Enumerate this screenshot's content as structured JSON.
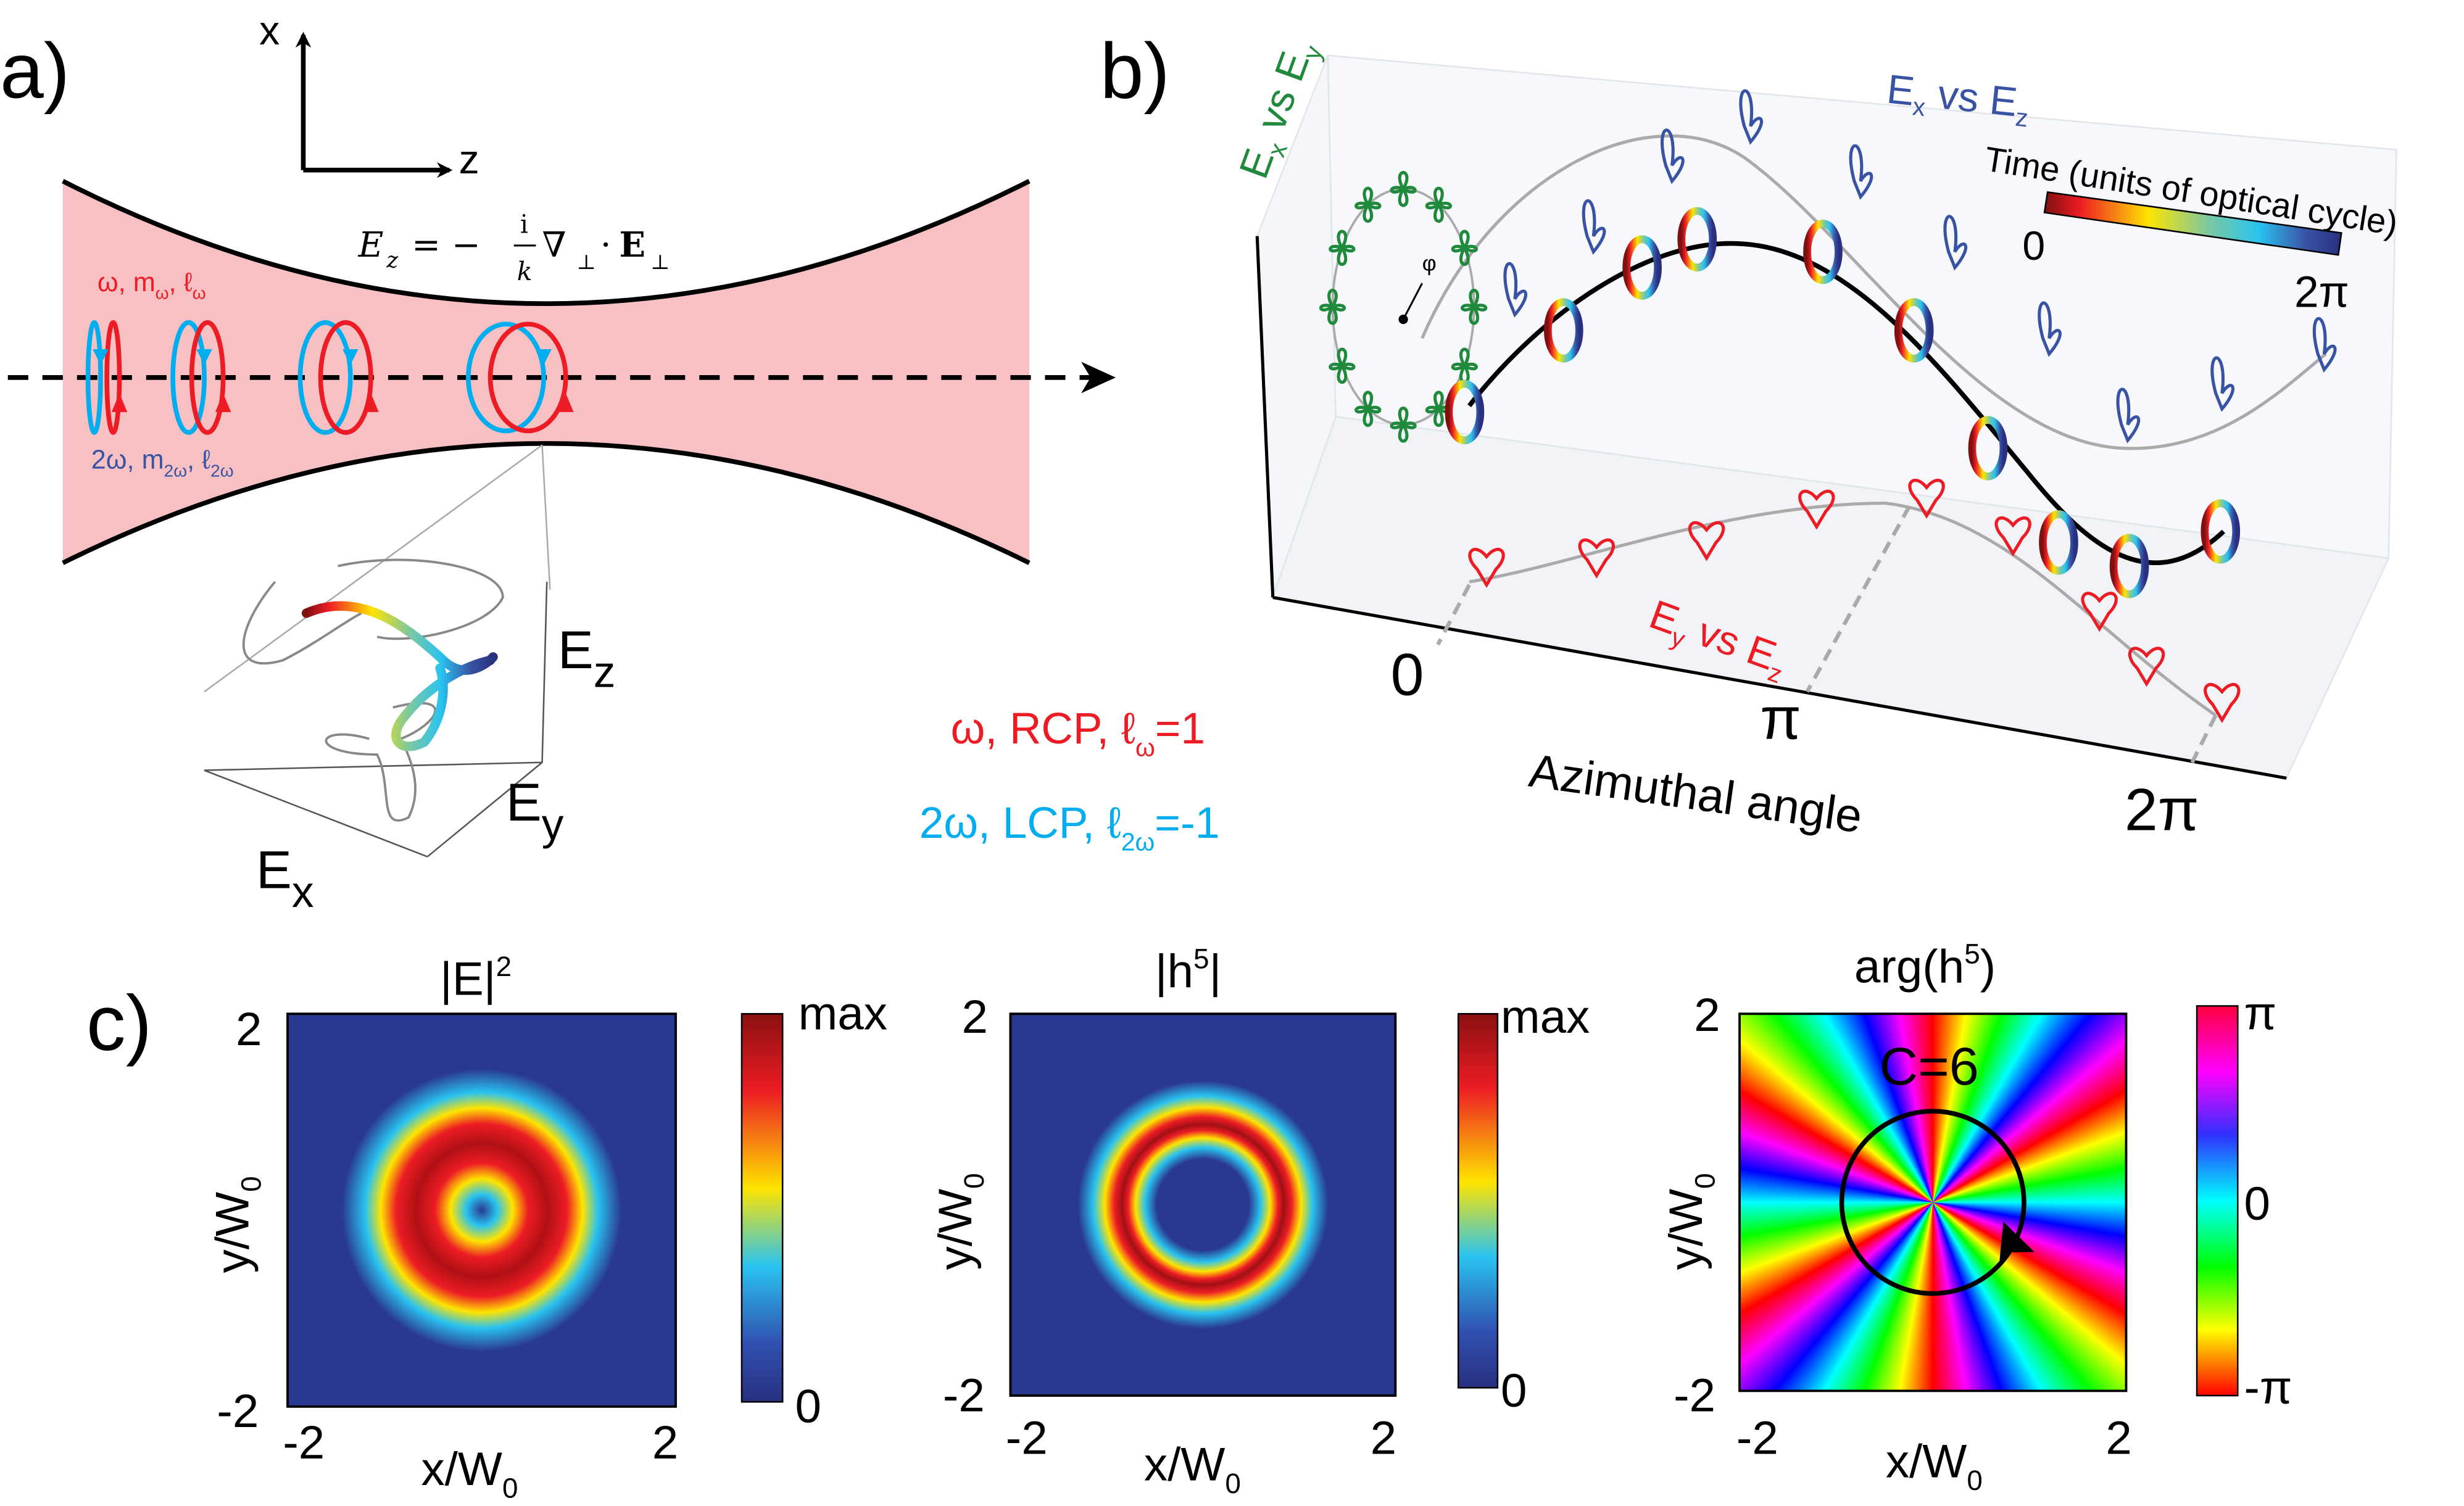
{
  "colors": {
    "red": "#ed1c24",
    "cyan": "#00aeef",
    "blue": "#3953a4",
    "green": "#1f8a3c",
    "beam": "#f7c1c3"
  },
  "panel_a": {
    "label": "a)",
    "axis_x": "x",
    "axis_z": "z",
    "equation": {
      "E": "E",
      "z": "z",
      "eq": "= −",
      "num": "i",
      "den": "k",
      "nabla": "∇",
      "perp": "⊥",
      "dot": "·",
      "bold_E": "E",
      "perp2": "⊥"
    },
    "omega_label": {
      "main": "ω, m",
      "sub1": "ω",
      "comma": ", ℓ",
      "sub2": "ω"
    },
    "two_omega_label": {
      "main": "2ω, m",
      "sub1": "2ω",
      "comma": ", ℓ",
      "sub2": "2ω"
    },
    "inset": {
      "ez": "E",
      "ez_sub": "z",
      "ey": "E",
      "ey_sub": "y",
      "ex": "E",
      "ex_sub": "x"
    },
    "legend": {
      "red": {
        "main": "ω, RCP, ℓ",
        "sub": "ω",
        "tail": "=1"
      },
      "cyan": {
        "main": "2ω, LCP, ℓ",
        "sub": "2ω",
        "tail": "=-1"
      }
    }
  },
  "panel_b": {
    "label": "b)",
    "ex_vs_ey": {
      "a": "E",
      "a_sub": "x",
      "mid": " vs E",
      "b_sub": "y"
    },
    "ex_vs_ez": {
      "a": "E",
      "a_sub": "x",
      "mid": " vs E",
      "b_sub": "z"
    },
    "ey_vs_ez": {
      "a": "E",
      "a_sub": "y",
      "mid": " vs E",
      "b_sub": "z"
    },
    "colorbar_title": "Time (units of optical cycle)",
    "colorbar_min": "0",
    "colorbar_max": "2π",
    "phi": "φ",
    "x_ticks": [
      "0",
      "π",
      "2π"
    ],
    "x_label": "Azimuthal angle"
  },
  "panel_c": {
    "label": "c)",
    "plots": [
      {
        "title": "|E|",
        "title_sup": "2",
        "cb_max": "max",
        "cb_min": "0"
      },
      {
        "title": "|h",
        "title_sup": "5",
        "title_tail": "|",
        "cb_max": "max",
        "cb_min": "0"
      },
      {
        "title": "arg(h",
        "title_sup": "5",
        "title_tail": ")",
        "cb_max": "π",
        "cb_mid": "0",
        "cb_min": "-π",
        "annotation": "C=6"
      }
    ],
    "y_ticks": [
      "2",
      "-2"
    ],
    "x_ticks": [
      "-2",
      "2"
    ],
    "x_label": {
      "main": "x/W",
      "sub": "0"
    },
    "y_label": {
      "main": "y/W",
      "sub": "0"
    }
  }
}
